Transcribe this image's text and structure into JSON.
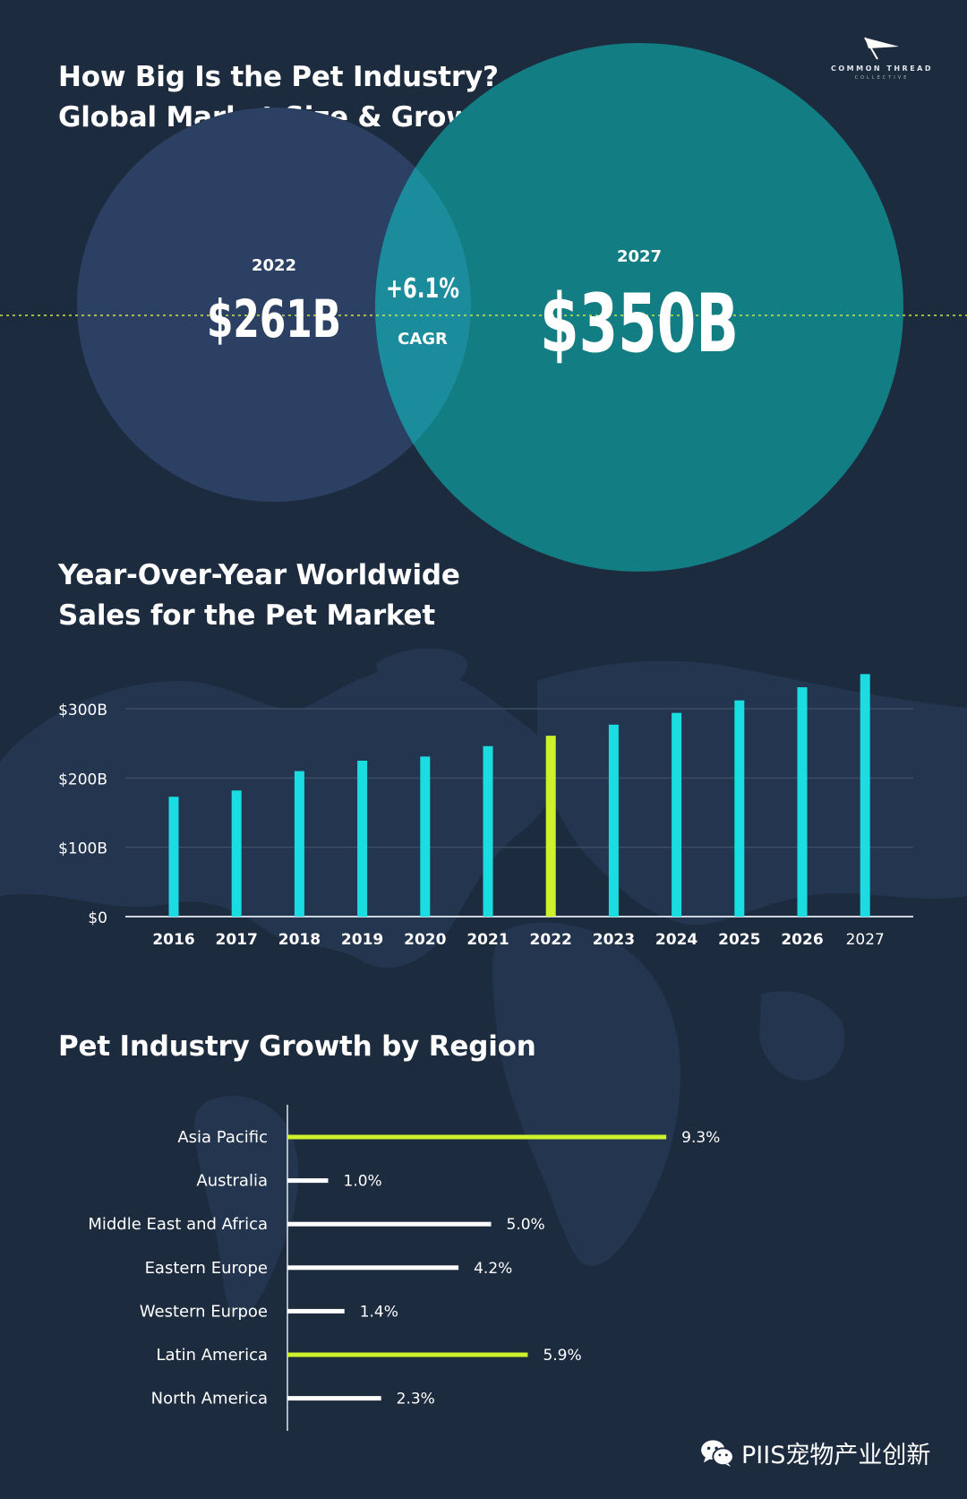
{
  "header": {
    "title_line1": "How Big Is the Pet Industry?",
    "title_line2": "Global Market Size & Growth Rate"
  },
  "logo": {
    "line1": "COMMON THREAD",
    "line2": "COLLECTIVE"
  },
  "venn": {
    "left_year": "2022",
    "left_value": "$261B",
    "center_value": "+6.1%",
    "center_label": "CAGR",
    "right_year": "2027",
    "right_value": "$350B",
    "colors": {
      "left": "#2c4064",
      "right": "#127d82",
      "overlap": "#1a8a9a",
      "guide": "#c9e64a"
    }
  },
  "chart_data": [
    {
      "type": "bar",
      "title_line1": "Year-Over-Year Worldwide",
      "title_line2": "Sales for the Pet Market",
      "categories": [
        "2016",
        "2017",
        "2018",
        "2019",
        "2020",
        "2021",
        "2022",
        "2023",
        "2024",
        "2025",
        "2026",
        "2027"
      ],
      "values": [
        173,
        182,
        210,
        225,
        231,
        246,
        261,
        277,
        294,
        312,
        331,
        350
      ],
      "highlight": "2022",
      "ylim": [
        0,
        350
      ],
      "yticks": [
        0,
        100,
        200,
        300
      ],
      "ytick_labels": [
        "$0",
        "$100B",
        "$200B",
        "$300B"
      ],
      "grid": true,
      "colors": {
        "bar": "#19dde0",
        "highlight": "#cdf22b",
        "grid": "#3d4d62",
        "axis": "#cfd6df"
      }
    },
    {
      "type": "bar",
      "orientation": "horizontal",
      "title": "Pet Industry Growth by Region",
      "categories": [
        "Asia Pacific",
        "Australia",
        "Middle East and Africa",
        "Eastern Europe",
        "Western Eurpoe",
        "Latin America",
        "North America"
      ],
      "values": [
        9.3,
        1.0,
        5.0,
        4.2,
        1.4,
        5.9,
        2.3
      ],
      "value_labels": [
        "9.3%",
        "1.0%",
        "5.0%",
        "4.2%",
        "1.4%",
        "5.9%",
        "2.3%"
      ],
      "highlight": [
        "Asia Pacific",
        "Latin America"
      ],
      "colors": {
        "bar": "#ffffff",
        "highlight": "#cdf22b"
      }
    }
  ],
  "watermark": {
    "text": "PIIS宠物产业创新"
  }
}
